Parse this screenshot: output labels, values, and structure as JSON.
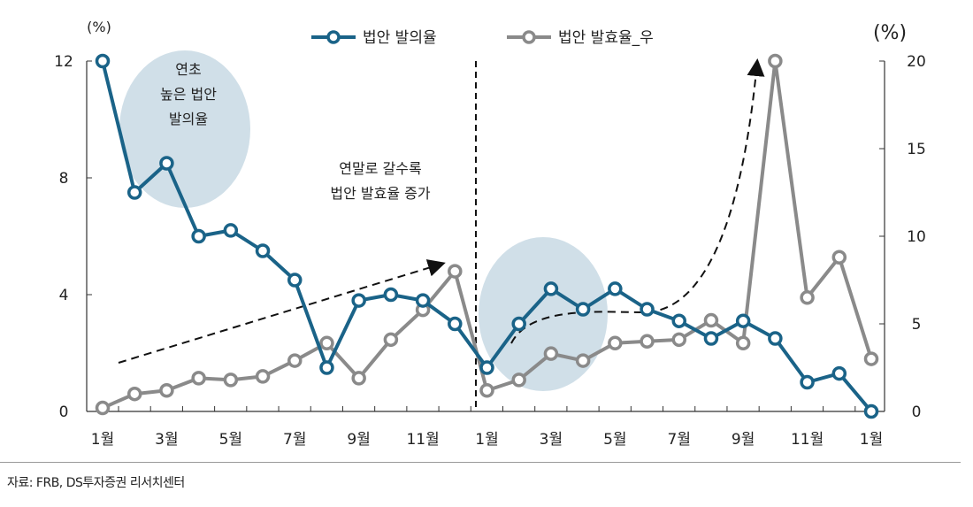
{
  "chart_data": {
    "type": "line",
    "categories": [
      "1월",
      "2월",
      "3월",
      "4월",
      "5월",
      "6월",
      "7월",
      "8월",
      "9월",
      "10월",
      "11월",
      "12월",
      "1월",
      "2월",
      "3월",
      "4월",
      "5월",
      "6월",
      "7월",
      "8월",
      "9월",
      "10월",
      "11월",
      "12월",
      "1월"
    ],
    "x_tick_labels": [
      "1월",
      "3월",
      "5월",
      "7월",
      "9월",
      "11월",
      "1월",
      "3월",
      "5월",
      "7월",
      "9월",
      "11월",
      "1월"
    ],
    "left_axis": {
      "unit": "(%)",
      "ylim": [
        0,
        12
      ],
      "ticks": [
        0,
        4,
        8,
        12
      ]
    },
    "right_axis": {
      "unit": "(%)",
      "ylim": [
        0,
        20
      ],
      "ticks": [
        0,
        5,
        10,
        15,
        20
      ]
    },
    "legend_position": "top-center",
    "grid": false,
    "series": [
      {
        "name": "법안 발의율",
        "axis": "left",
        "color": "#1a6388",
        "values": [
          12,
          7.5,
          8.5,
          6.0,
          6.2,
          5.5,
          4.5,
          1.5,
          3.8,
          4.0,
          3.8,
          3.0,
          1.5,
          3.0,
          4.2,
          3.5,
          4.2,
          3.5,
          3.1,
          2.5,
          3.1,
          2.5,
          1.0,
          1.3,
          0
        ]
      },
      {
        "name": "법안 발효율_우",
        "axis": "right",
        "color": "#8a8a8a",
        "values": [
          0.2,
          1.0,
          1.2,
          1.9,
          1.8,
          2.0,
          2.9,
          3.9,
          1.9,
          4.1,
          5.8,
          8.0,
          1.2,
          1.8,
          3.3,
          2.9,
          3.9,
          4.0,
          4.1,
          5.2,
          3.9,
          20,
          6.5,
          8.8,
          3.0
        ]
      }
    ],
    "annotations": [
      {
        "lines": [
          "연초",
          "높은 법안",
          "발의율"
        ]
      },
      {
        "lines": [
          "연말로 갈수록",
          "법안 발효율 증가"
        ]
      }
    ]
  },
  "source": "자료: FRB, DS투자증권 리서치센터"
}
